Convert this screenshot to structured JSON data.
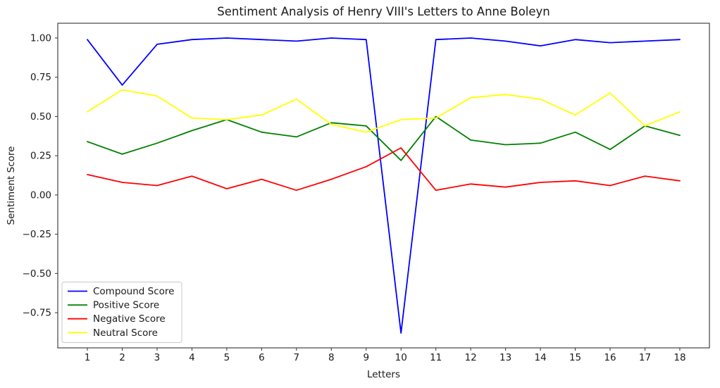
{
  "figure": {
    "background": "#ffffff"
  },
  "chart_data": {
    "type": "line",
    "title": "Sentiment Analysis of Henry VIII's Letters to Anne Boleyn",
    "xlabel": "Letters",
    "ylabel": "Sentiment Score",
    "x": [
      1,
      2,
      3,
      4,
      5,
      6,
      7,
      8,
      9,
      10,
      11,
      12,
      13,
      14,
      15,
      16,
      17,
      18
    ],
    "xticks": [
      1,
      2,
      3,
      4,
      5,
      6,
      7,
      8,
      9,
      10,
      11,
      12,
      13,
      14,
      15,
      16,
      17,
      18
    ],
    "yticks": [
      -0.75,
      -0.5,
      -0.25,
      0.0,
      0.25,
      0.5,
      0.75,
      1.0
    ],
    "xlim": [
      0.15,
      18.85
    ],
    "ylim": [
      -0.974,
      1.094
    ],
    "grid": false,
    "legend_position": "lower left",
    "series": [
      {
        "name": "Compound Score",
        "color": "#0000ff",
        "values": [
          0.99,
          0.7,
          0.96,
          0.99,
          1.0,
          0.99,
          0.98,
          1.0,
          0.99,
          -0.88,
          0.99,
          1.0,
          0.98,
          0.95,
          0.99,
          0.97,
          0.98,
          0.99
        ]
      },
      {
        "name": "Positive Score",
        "color": "#008000",
        "values": [
          0.34,
          0.26,
          0.33,
          0.41,
          0.48,
          0.4,
          0.37,
          0.46,
          0.44,
          0.22,
          0.5,
          0.35,
          0.32,
          0.33,
          0.4,
          0.29,
          0.44,
          0.38
        ]
      },
      {
        "name": "Negative Score",
        "color": "#ff0000",
        "values": [
          0.13,
          0.08,
          0.06,
          0.12,
          0.04,
          0.1,
          0.03,
          0.1,
          0.18,
          0.3,
          0.03,
          0.07,
          0.05,
          0.08,
          0.09,
          0.06,
          0.12,
          0.09
        ]
      },
      {
        "name": "Neutral Score",
        "color": "#ffff00",
        "values": [
          0.53,
          0.67,
          0.63,
          0.49,
          0.48,
          0.51,
          0.61,
          0.45,
          0.4,
          0.48,
          0.49,
          0.62,
          0.64,
          0.61,
          0.51,
          0.65,
          0.44,
          0.53
        ]
      }
    ],
    "style": {
      "spine_color": "#444444",
      "tick_color": "#333333",
      "line_width": 1.8,
      "legend_border": "#c8c8c8",
      "legend_bg": "#ffffff"
    }
  }
}
